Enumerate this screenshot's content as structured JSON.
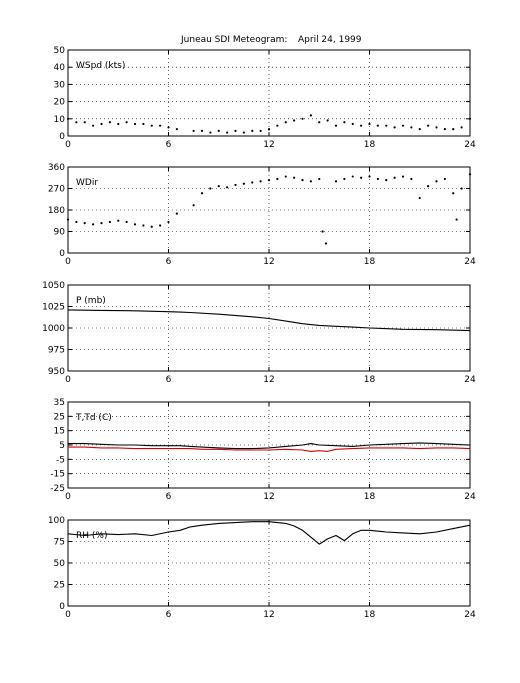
{
  "title": "Juneau SDI Meteogram:",
  "date": "April 24, 1999",
  "chart_data": [
    {
      "type": "scatter",
      "label": "WSpd (kts)",
      "xlim": [
        0,
        24
      ],
      "ylim": [
        0,
        50
      ],
      "xticks": [
        0,
        6,
        12,
        18,
        24
      ],
      "yticks": [
        0,
        10,
        20,
        30,
        40,
        50
      ],
      "grid": true,
      "series": [
        {
          "color": "#000000",
          "x": [
            0,
            0.5,
            1,
            1.5,
            2,
            2.5,
            3,
            3.5,
            4,
            4.5,
            5,
            5.5,
            6,
            6.5,
            7.5,
            8,
            8.5,
            9,
            9.5,
            10,
            10.5,
            11,
            11.5,
            12,
            12.5,
            13,
            13.5,
            14,
            14.5,
            15,
            15.5,
            16,
            16.5,
            17,
            17.5,
            18,
            18.5,
            19,
            19.5,
            20,
            20.5,
            21,
            21.5,
            22,
            22.5,
            23,
            23.5,
            24
          ],
          "y": [
            10,
            8,
            8,
            6,
            7,
            8,
            7,
            8,
            7,
            7,
            6,
            6,
            5,
            4,
            3,
            3,
            2,
            3,
            2,
            3,
            2,
            3,
            3,
            4,
            6,
            8,
            9,
            10,
            12,
            8,
            9,
            6,
            8,
            7,
            6,
            7,
            6,
            6,
            5,
            6,
            5,
            4,
            6,
            5,
            4,
            4,
            5,
            10
          ]
        }
      ]
    },
    {
      "type": "scatter",
      "label": "WDir",
      "xlim": [
        0,
        24
      ],
      "ylim": [
        0,
        360
      ],
      "xticks": [
        0,
        6,
        12,
        18,
        24
      ],
      "yticks": [
        0,
        90,
        180,
        270,
        360
      ],
      "grid": true,
      "series": [
        {
          "color": "#000000",
          "x": [
            0,
            0.5,
            1,
            1.5,
            2,
            2.5,
            3,
            3.5,
            4,
            4.5,
            5,
            5.5,
            6,
            6.5,
            7.5,
            8,
            8.5,
            9,
            9.5,
            10,
            10.5,
            11,
            11.5,
            12,
            12.5,
            13,
            13.5,
            14,
            14.5,
            15,
            15.2,
            15.4,
            16,
            16.5,
            17,
            17.5,
            18,
            18.5,
            19,
            19.5,
            20,
            20.5,
            21,
            21.5,
            22,
            22.5,
            23,
            23.2,
            23.5,
            24
          ],
          "y": [
            140,
            130,
            125,
            120,
            125,
            130,
            135,
            130,
            120,
            115,
            110,
            115,
            130,
            165,
            200,
            250,
            270,
            280,
            275,
            285,
            290,
            295,
            300,
            305,
            310,
            320,
            315,
            305,
            300,
            310,
            90,
            40,
            300,
            310,
            320,
            315,
            320,
            310,
            305,
            315,
            320,
            310,
            230,
            280,
            300,
            310,
            250,
            140,
            270,
            330
          ]
        }
      ]
    },
    {
      "type": "line",
      "label": "P (mb)",
      "xlim": [
        0,
        24
      ],
      "ylim": [
        950,
        1050
      ],
      "xticks": [
        0,
        6,
        12,
        18,
        24
      ],
      "yticks": [
        950,
        975,
        1000,
        1025,
        1050
      ],
      "grid": true,
      "series": [
        {
          "color": "#000000",
          "x": [
            0,
            2,
            4,
            6,
            6.7,
            7.3,
            9,
            11,
            12,
            13,
            14,
            15,
            16,
            17,
            18,
            20,
            22,
            24
          ],
          "y": [
            1021,
            1020.5,
            1020,
            1019,
            1018.5,
            1018,
            1016,
            1013,
            1011,
            1008,
            1005,
            1003,
            1002,
            1001,
            1000,
            998.5,
            998,
            997
          ]
        }
      ]
    },
    {
      "type": "line",
      "label": "T,Td (C)",
      "xlim": [
        0,
        24
      ],
      "ylim": [
        -25,
        35
      ],
      "xticks": [
        0,
        6,
        12,
        18,
        24
      ],
      "yticks": [
        -25,
        -15,
        -5,
        5,
        15,
        25,
        35
      ],
      "grid": true,
      "series": [
        {
          "color": "#000000",
          "x": [
            0,
            1,
            2,
            3,
            4,
            5,
            6,
            6.7,
            7.3,
            8,
            9,
            10,
            11,
            12,
            13,
            14,
            14.5,
            15,
            16,
            17,
            18,
            19,
            20,
            21,
            22,
            23,
            24
          ],
          "y": [
            6,
            6,
            5.5,
            5,
            5,
            4.5,
            4.5,
            4.5,
            4,
            3.5,
            3,
            2.5,
            2.5,
            3,
            4,
            5,
            6,
            5,
            4.5,
            4,
            5,
            5.5,
            6,
            6.5,
            6,
            5.5,
            5
          ]
        },
        {
          "color": "#d40000",
          "x": [
            0,
            1,
            2,
            3,
            4,
            5,
            6,
            6.7,
            7.3,
            8,
            9,
            10,
            11,
            12,
            13,
            14,
            14.5,
            15,
            15.5,
            16,
            17,
            18,
            19,
            20,
            21,
            22,
            23,
            24
          ],
          "y": [
            3.5,
            3.5,
            3,
            3,
            2.5,
            2.5,
            2.5,
            2.5,
            2.5,
            2,
            2,
            1.5,
            1.5,
            1.5,
            2,
            1.5,
            0.5,
            1,
            0.5,
            2,
            2.5,
            3,
            3,
            3,
            2.5,
            3,
            3,
            2.5
          ]
        }
      ]
    },
    {
      "type": "line",
      "label": "RH (%)",
      "xlim": [
        0,
        24
      ],
      "ylim": [
        0,
        100
      ],
      "xticks": [
        0,
        6,
        12,
        18,
        24
      ],
      "yticks": [
        0,
        25,
        50,
        75,
        100
      ],
      "grid": true,
      "series": [
        {
          "color": "#000000",
          "x": [
            0,
            1,
            2,
            3,
            4,
            5,
            6,
            6.7,
            7.3,
            8,
            9,
            10,
            11,
            12,
            13,
            13.5,
            14,
            14.5,
            15,
            15.5,
            16,
            16.5,
            17,
            17.5,
            18,
            19,
            20,
            21,
            22,
            23,
            24
          ],
          "y": [
            84,
            82,
            84,
            83,
            84,
            82,
            86,
            88,
            92,
            94,
            96,
            97,
            98,
            98,
            96,
            93,
            88,
            80,
            72,
            78,
            82,
            76,
            84,
            88,
            88,
            86,
            85,
            84,
            86,
            90,
            94
          ]
        }
      ]
    }
  ]
}
